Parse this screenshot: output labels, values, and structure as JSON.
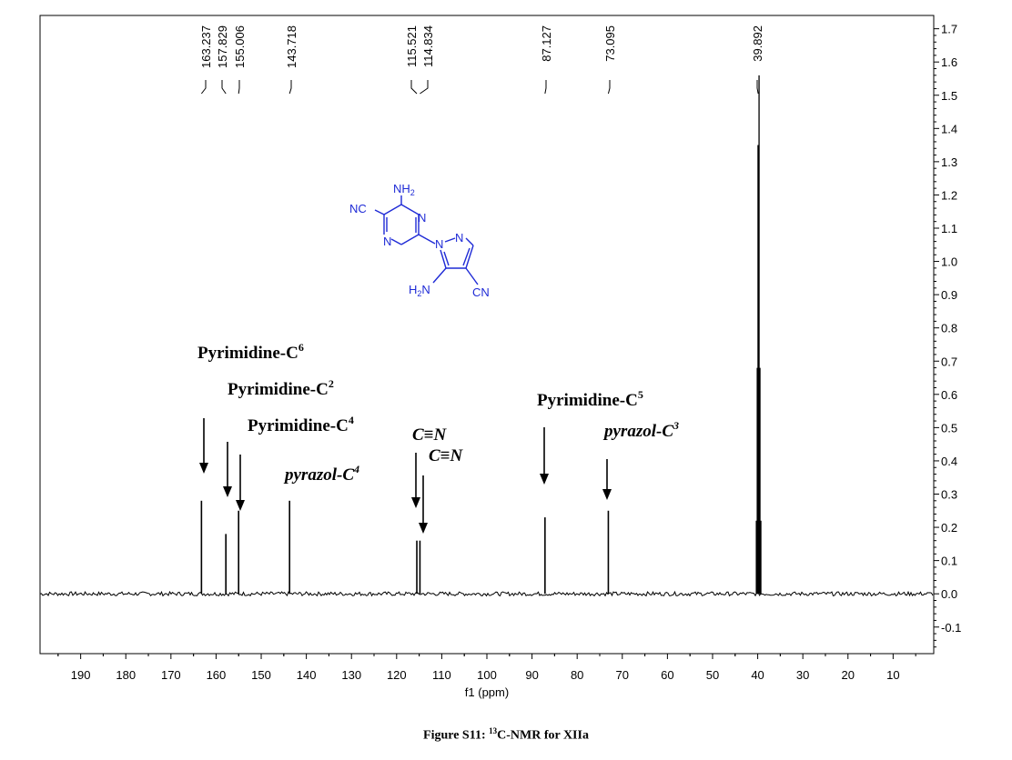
{
  "chart_data": {
    "type": "line",
    "xlabel": "f1 (ppm)",
    "xlim": [
      199,
      1
    ],
    "ylim": [
      -0.18,
      1.74
    ],
    "x_ticks": [
      190,
      180,
      170,
      160,
      150,
      140,
      130,
      120,
      110,
      100,
      90,
      80,
      70,
      60,
      50,
      40,
      30,
      20,
      10
    ],
    "y_ticks": [
      1.7,
      1.6,
      1.5,
      1.4,
      1.3,
      1.2,
      1.1,
      1.0,
      0.9,
      0.8,
      0.7,
      0.6,
      0.5,
      0.4,
      0.3,
      0.2,
      0.1,
      0.0,
      -0.1
    ],
    "y_tick_labels": [
      "1.7",
      "1.6",
      "1.5",
      "1.4",
      "1.3",
      "1.2",
      "1.1",
      "1.0",
      "0.9",
      "0.8",
      "0.7",
      "0.6",
      "0.5",
      "0.4",
      "0.3",
      "0.2",
      "0.1",
      "0.0",
      "-0.1"
    ],
    "peaks": [
      {
        "ppm": 163.237,
        "label": "163.237",
        "height": 0.28
      },
      {
        "ppm": 157.829,
        "label": "157.829",
        "height": 0.18
      },
      {
        "ppm": 155.006,
        "label": "155.006",
        "height": 0.25
      },
      {
        "ppm": 143.718,
        "label": "143.718",
        "height": 0.28
      },
      {
        "ppm": 115.521,
        "label": "115.521",
        "height": 0.16
      },
      {
        "ppm": 114.834,
        "label": "114.834",
        "height": 0.16
      },
      {
        "ppm": 87.127,
        "label": "87.127",
        "height": 0.23
      },
      {
        "ppm": 73.095,
        "label": "73.095",
        "height": 0.25
      },
      {
        "ppm": 39.892,
        "label": "39.892",
        "height": 1.35
      }
    ],
    "solvent_multiplet": [
      {
        "ppm": 40.3,
        "height": 0.22
      },
      {
        "ppm": 40.1,
        "height": 0.68
      },
      {
        "ppm": 39.892,
        "height": 1.35
      },
      {
        "ppm": 39.7,
        "height": 1.56
      },
      {
        "ppm": 39.5,
        "height": 0.68
      },
      {
        "ppm": 39.3,
        "height": 0.22
      }
    ],
    "grid": false,
    "y_axis_side": "right"
  },
  "annotations": [
    {
      "base": "Pyrimidine-C",
      "sup": "6",
      "italic": false,
      "target_ppm": 163.237
    },
    {
      "base": "Pyrimidine-C",
      "sup": "2",
      "italic": false,
      "target_ppm": 157.829
    },
    {
      "base": "Pyrimidine-C",
      "sup": "4",
      "italic": false,
      "target_ppm": 155.006
    },
    {
      "base": "pyrazol-C",
      "sup": "4",
      "italic": true,
      "target_ppm": 143.718
    },
    {
      "base": "C≡N",
      "sup": "",
      "italic": true,
      "target_ppm": 115.521
    },
    {
      "base": "C≡N",
      "sup": "",
      "italic": true,
      "target_ppm": 114.834
    },
    {
      "base": "Pyrimidine-C",
      "sup": "5",
      "italic": false,
      "target_ppm": 87.127
    },
    {
      "base": "pyrazol-C",
      "sup": "3",
      "italic": true,
      "target_ppm": 73.095
    }
  ],
  "molecule": {
    "labels": {
      "nh2": "NH",
      "nh2_sub": "2",
      "nc": "NC",
      "n_top": "N",
      "n_bottom": "N",
      "n_pz1": "N",
      "n_pz2": "N",
      "h2n": "H",
      "h2n_sub": "2",
      "h2n_n": "N",
      "cn": "CN"
    },
    "color": "#1f2bd6"
  },
  "caption": {
    "prefix": "Figure S11: ",
    "sup": "13",
    "text": "C-NMR for XIIa"
  }
}
